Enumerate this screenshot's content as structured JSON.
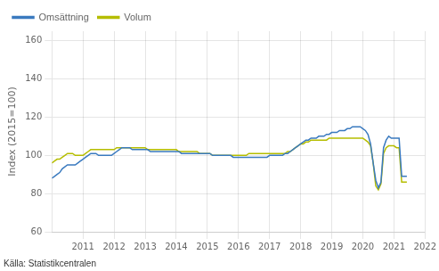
{
  "chart_data": {
    "type": "line",
    "ylabel": "Index (2015=100)",
    "source": "Källa: Statistikcentralen",
    "ylim": [
      60,
      165
    ],
    "yticks": [
      60,
      80,
      100,
      120,
      140,
      160
    ],
    "xlim": [
      2010.0,
      2022.0
    ],
    "xticks": [
      2011,
      2012,
      2013,
      2014,
      2015,
      2016,
      2017,
      2018,
      2019,
      2020,
      2021,
      2022
    ],
    "grid": true,
    "legend": "upper left",
    "x": [
      2010.0,
      2010.0833333333333,
      2010.1666666666667,
      2010.25,
      2010.3333333333333,
      2010.4166666666667,
      2010.5,
      2010.5833333333333,
      2010.6666666666667,
      2010.75,
      2010.8333333333333,
      2010.9166666666667,
      2011.0,
      2011.0833333333333,
      2011.1666666666667,
      2011.25,
      2011.3333333333333,
      2011.4166666666667,
      2011.5,
      2011.5833333333333,
      2011.6666666666667,
      2011.75,
      2011.8333333333333,
      2011.9166666666667,
      2012.0,
      2012.0833333333333,
      2012.1666666666667,
      2012.25,
      2012.3333333333333,
      2012.4166666666667,
      2012.5,
      2012.5833333333333,
      2012.6666666666667,
      2012.75,
      2012.8333333333333,
      2012.9166666666667,
      2013.0,
      2013.0833333333333,
      2013.1666666666667,
      2013.25,
      2013.3333333333333,
      2013.4166666666667,
      2013.5,
      2013.5833333333333,
      2013.6666666666667,
      2013.75,
      2013.8333333333333,
      2013.9166666666667,
      2014.0,
      2014.0833333333333,
      2014.1666666666667,
      2014.25,
      2014.3333333333333,
      2014.4166666666667,
      2014.5,
      2014.5833333333333,
      2014.6666666666667,
      2014.75,
      2014.8333333333333,
      2014.9166666666667,
      2015.0,
      2015.0833333333333,
      2015.1666666666667,
      2015.25,
      2015.3333333333333,
      2015.4166666666667,
      2015.5,
      2015.5833333333333,
      2015.6666666666667,
      2015.75,
      2015.8333333333333,
      2015.9166666666667,
      2016.0,
      2016.0833333333333,
      2016.1666666666667,
      2016.25,
      2016.3333333333333,
      2016.4166666666667,
      2016.5,
      2016.5833333333333,
      2016.6666666666667,
      2016.75,
      2016.8333333333333,
      2016.9166666666667,
      2017.0,
      2017.0833333333333,
      2017.1666666666667,
      2017.25,
      2017.3333333333333,
      2017.4166666666667,
      2017.5,
      2017.5833333333333,
      2017.6666666666667,
      2017.75,
      2017.8333333333333,
      2017.9166666666667,
      2018.0,
      2018.0833333333333,
      2018.1666666666667,
      2018.25,
      2018.3333333333333,
      2018.4166666666667,
      2018.5,
      2018.5833333333333,
      2018.6666666666667,
      2018.75,
      2018.8333333333333,
      2018.9166666666667,
      2019.0,
      2019.0833333333333,
      2019.1666666666667,
      2019.25,
      2019.3333333333333,
      2019.4166666666667,
      2019.5,
      2019.5833333333333,
      2019.6666666666667,
      2019.75,
      2019.8333333333333,
      2019.9166666666667,
      2020.0,
      2020.0833333333333,
      2020.1666666666667,
      2020.25,
      2020.3333333333333,
      2020.4166666666667,
      2020.5,
      2020.5833333333333,
      2020.6666666666667,
      2020.75,
      2020.8333333333333,
      2020.9166666666667,
      2021.0,
      2021.0833333333333,
      2021.1666666666667,
      2021.25,
      2021.3333333333333,
      2021.4166666666667
    ],
    "series": [
      {
        "name": "Omsättning",
        "color": "#3a7abf",
        "values": [
          88,
          89,
          90,
          91,
          93,
          94,
          95,
          95,
          95,
          95,
          96,
          97,
          98,
          99,
          100,
          101,
          101,
          101,
          100,
          100,
          100,
          100,
          100,
          100,
          101,
          102,
          103,
          104,
          104,
          104,
          104,
          103,
          103,
          103,
          103,
          103,
          103,
          103,
          102,
          102,
          102,
          102,
          102,
          102,
          102,
          102,
          102,
          102,
          102,
          102,
          101,
          101,
          101,
          101,
          101,
          101,
          101,
          101,
          101,
          101,
          101,
          101,
          100,
          100,
          100,
          100,
          100,
          100,
          100,
          100,
          99,
          99,
          99,
          99,
          99,
          99,
          99,
          99,
          99,
          99,
          99,
          99,
          99,
          99,
          100,
          100,
          100,
          100,
          100,
          100,
          101,
          101,
          102,
          103,
          104,
          105,
          106,
          107,
          108,
          108,
          109,
          109,
          109,
          110,
          110,
          110,
          111,
          111,
          112,
          112,
          112,
          113,
          113,
          113,
          114,
          114,
          115,
          115,
          115,
          115,
          114,
          113,
          111,
          106,
          96,
          87,
          83,
          86,
          104,
          108,
          110,
          109,
          109,
          109,
          109,
          89,
          89,
          89
        ]
      },
      {
        "name": "Volum",
        "color": "#b5bd00",
        "values": [
          96,
          97,
          98,
          98,
          99,
          100,
          101,
          101,
          101,
          100,
          100,
          100,
          100,
          101,
          102,
          103,
          103,
          103,
          103,
          103,
          103,
          103,
          103,
          103,
          103,
          104,
          104,
          104,
          104,
          104,
          104,
          104,
          104,
          104,
          104,
          104,
          104,
          103,
          103,
          103,
          103,
          103,
          103,
          103,
          103,
          103,
          103,
          103,
          103,
          102,
          102,
          102,
          102,
          102,
          102,
          102,
          102,
          101,
          101,
          101,
          101,
          101,
          100,
          100,
          100,
          100,
          100,
          100,
          100,
          100,
          100,
          100,
          100,
          100,
          100,
          100,
          101,
          101,
          101,
          101,
          101,
          101,
          101,
          101,
          101,
          101,
          101,
          101,
          101,
          101,
          101,
          102,
          102,
          103,
          104,
          105,
          106,
          106,
          107,
          107,
          108,
          108,
          108,
          108,
          108,
          108,
          108,
          109,
          109,
          109,
          109,
          109,
          109,
          109,
          109,
          109,
          109,
          109,
          109,
          109,
          109,
          108,
          107,
          105,
          96,
          84,
          82,
          85,
          101,
          104,
          105,
          105,
          105,
          104,
          104,
          86,
          86,
          86
        ]
      }
    ]
  }
}
